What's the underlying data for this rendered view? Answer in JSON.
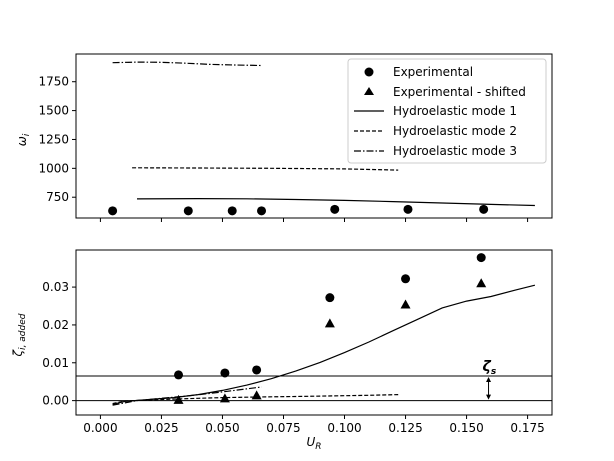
{
  "chart_data": [
    {
      "type": "scatter",
      "ylabel_main": "ω",
      "ylabel_sub": "i",
      "xlim": [
        -0.01,
        0.185
      ],
      "ylim": [
        570,
        1990
      ],
      "yticks": [
        750,
        1000,
        1250,
        1500,
        1750
      ],
      "legend_position": "upper-right",
      "series": [
        {
          "name": "Experimental",
          "marker": "circle",
          "points": [
            [
              0.005,
              632
            ],
            [
              0.036,
              632
            ],
            [
              0.054,
              632
            ],
            [
              0.066,
              632
            ],
            [
              0.096,
              645
            ],
            [
              0.126,
              645
            ],
            [
              0.157,
              645
            ]
          ]
        },
        {
          "name": "Experimental - shifted",
          "marker": "triangle",
          "points": []
        },
        {
          "name": "Hydroelastic mode 1",
          "line": "solid",
          "points": [
            [
              0.015,
              735
            ],
            [
              0.04,
              738
            ],
            [
              0.06,
              736
            ],
            [
              0.08,
              730
            ],
            [
              0.1,
              722
            ],
            [
              0.12,
              712
            ],
            [
              0.14,
              700
            ],
            [
              0.16,
              688
            ],
            [
              0.178,
              678
            ]
          ]
        },
        {
          "name": "Hydroelastic mode 2",
          "line": "dashed",
          "points": [
            [
              0.013,
              1005
            ],
            [
              0.04,
              1003
            ],
            [
              0.07,
              1000
            ],
            [
              0.1,
              995
            ],
            [
              0.122,
              985
            ]
          ]
        },
        {
          "name": "Hydroelastic mode 3",
          "line": "dashdot",
          "points": [
            [
              0.005,
              1915
            ],
            [
              0.015,
              1920
            ],
            [
              0.025,
              1918
            ],
            [
              0.035,
              1910
            ],
            [
              0.045,
              1900
            ],
            [
              0.055,
              1895
            ],
            [
              0.066,
              1890
            ]
          ]
        }
      ]
    },
    {
      "type": "scatter",
      "xlabel_main": "U",
      "xlabel_sub": "R",
      "ylabel_main": "ζ",
      "ylabel_sub": "i, added",
      "xlim": [
        -0.01,
        0.185
      ],
      "ylim": [
        -0.0038,
        0.0398
      ],
      "xticks": [
        "0.000",
        "0.025",
        "0.050",
        "0.075",
        "0.100",
        "0.125",
        "0.150",
        "0.175"
      ],
      "xtick_values": [
        0.0,
        0.025,
        0.05,
        0.075,
        0.1,
        0.125,
        0.15,
        0.175
      ],
      "yticks": [
        "0.00",
        "0.01",
        "0.02",
        "0.03"
      ],
      "ytick_values": [
        0.0,
        0.01,
        0.02,
        0.03
      ],
      "series": [
        {
          "name": "Experimental",
          "marker": "circle",
          "points": [
            [
              0.032,
              0.0068
            ],
            [
              0.051,
              0.0073
            ],
            [
              0.064,
              0.0081
            ],
            [
              0.094,
              0.0272
            ],
            [
              0.125,
              0.0322
            ],
            [
              0.156,
              0.0378
            ]
          ]
        },
        {
          "name": "Experimental - shifted",
          "marker": "triangle",
          "points": [
            [
              0.032,
              0.0002
            ],
            [
              0.051,
              0.0006
            ],
            [
              0.064,
              0.0014
            ],
            [
              0.094,
              0.0204
            ],
            [
              0.125,
              0.0254
            ],
            [
              0.156,
              0.031
            ]
          ]
        },
        {
          "name": "Hydroelastic mode 1",
          "line": "solid",
          "points": [
            [
              0.005,
              -0.001
            ],
            [
              0.01,
              -0.0002
            ],
            [
              0.02,
              0.0003
            ],
            [
              0.03,
              0.0008
            ],
            [
              0.04,
              0.0016
            ],
            [
              0.05,
              0.0027
            ],
            [
              0.06,
              0.0041
            ],
            [
              0.07,
              0.0058
            ],
            [
              0.08,
              0.0078
            ],
            [
              0.09,
              0.0101
            ],
            [
              0.1,
              0.0127
            ],
            [
              0.11,
              0.0155
            ],
            [
              0.12,
              0.0185
            ],
            [
              0.13,
              0.0215
            ],
            [
              0.14,
              0.0245
            ],
            [
              0.15,
              0.0263
            ],
            [
              0.16,
              0.0275
            ],
            [
              0.17,
              0.0292
            ],
            [
              0.178,
              0.0305
            ]
          ]
        },
        {
          "name": "Hydroelastic mode 2",
          "line": "dashed",
          "points": [
            [
              0.005,
              -0.0008
            ],
            [
              0.01,
              -0.0001
            ],
            [
              0.02,
              0.0002
            ],
            [
              0.03,
              0.0004
            ],
            [
              0.04,
              0.0006
            ],
            [
              0.05,
              0.0008
            ],
            [
              0.06,
              0.0009
            ],
            [
              0.07,
              0.001
            ],
            [
              0.08,
              0.0011
            ],
            [
              0.09,
              0.0012
            ],
            [
              0.1,
              0.0013
            ],
            [
              0.11,
              0.0014
            ],
            [
              0.122,
              0.0016
            ]
          ]
        },
        {
          "name": "Hydroelastic mode 3",
          "line": "dashdot",
          "points": [
            [
              0.005,
              -0.0012
            ],
            [
              0.015,
              0.0
            ],
            [
              0.025,
              0.0006
            ],
            [
              0.035,
              0.0012
            ],
            [
              0.045,
              0.0019
            ],
            [
              0.055,
              0.0027
            ],
            [
              0.066,
              0.0036
            ]
          ]
        }
      ],
      "hlines": [
        0.0065,
        0.0
      ],
      "annotation": {
        "text": "ζ",
        "sub": "s",
        "between": [
          0.0,
          0.0065
        ],
        "x": 0.159
      }
    }
  ]
}
